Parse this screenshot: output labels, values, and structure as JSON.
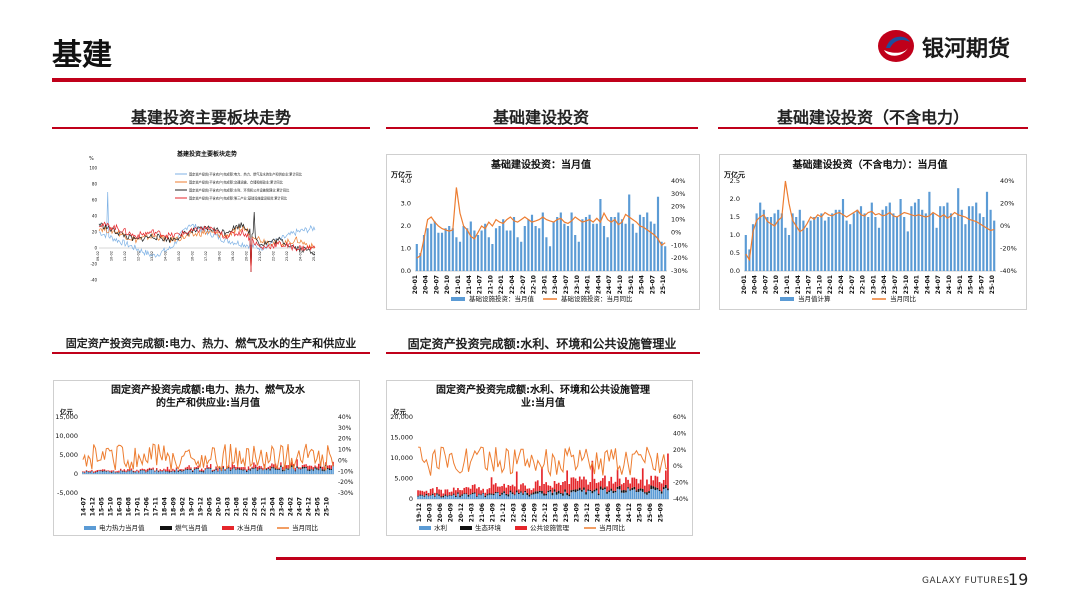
{
  "page": {
    "title": "基建",
    "number": "19",
    "footer": "GALAXY FUTURES"
  },
  "brand": {
    "name": "银河期货",
    "accent": "#c0001a"
  },
  "sections": [
    {
      "title": "基建投资主要板块走势"
    },
    {
      "title": "基础建设投资"
    },
    {
      "title": "基础建设投资（不含电力）"
    },
    {
      "title": "固定资产投资完成额:电力、热力、燃气及水的生产和供应业"
    },
    {
      "title": "固定资产投资完成额:水利、环境和公共设施管理业"
    }
  ],
  "chart_data": [
    {
      "type": "line",
      "title": "基建投资主要板块走势",
      "y_unit": "%",
      "ylim": [
        -40,
        100
      ],
      "yticks": [
        "100",
        "80",
        "60",
        "40",
        "20",
        "0",
        "-20",
        "-40"
      ],
      "legend": [
        "固定资产投资(不含农户)完成额:电力、热力、燃气及水的生产和供应业:累计同比",
        "固定资产投资(不含农户)完成额:交通运输、仓储和邮政业:累计同比",
        "固定资产投资(不含农户)完成额:水利、环境和公共设施管理业:累计同比",
        "固定资产投资(不含农户)完成额:第三产业:基础设施建设投资:累计同比"
      ],
      "colors": [
        "#7fb2e5",
        "#ed7d31",
        "#222222",
        "#e5262b"
      ],
      "xticks": [
        "09-02",
        "10-02",
        "11-02",
        "12-02",
        "13-02",
        "14-02",
        "15-02",
        "16-02",
        "17-02",
        "18-02",
        "19-02",
        "20-02",
        "21-02",
        "22-02",
        "23-02",
        "24-02",
        "25-02"
      ]
    },
    {
      "type": "bar+line",
      "title": "基础建设投资：当月值",
      "y_unit": "万亿元",
      "ylim": [
        0,
        4.0
      ],
      "yticks": [
        "4.0",
        "3.0",
        "2.0",
        "1.0",
        "0.0"
      ],
      "y2ticks": [
        "40%",
        "30%",
        "20%",
        "10%",
        "0%",
        "-10%",
        "-20%",
        "-30%"
      ],
      "y2lim": [
        -30,
        40
      ],
      "xticks": [
        "20-01",
        "20-04",
        "20-07",
        "20-10",
        "21-01",
        "21-04",
        "21-07",
        "21-10",
        "22-01",
        "22-04",
        "22-07",
        "22-10",
        "23-01",
        "23-04",
        "23-07",
        "23-10",
        "24-01",
        "24-04",
        "24-07",
        "24-10",
        "25-01",
        "25-04",
        "25-07",
        "25-10"
      ],
      "series": [
        {
          "name": "基础设施投资：当月值",
          "color": "#5b9bd5",
          "values": [
            1.2,
            0.8,
            1.6,
            1.9,
            2.1,
            2.2,
            1.7,
            1.7,
            1.9,
            2.0,
            1.9,
            1.5,
            1.3,
            2.0,
            1.9,
            2.2,
            1.8,
            1.6,
            1.8,
            2.1,
            1.5,
            1.2,
            1.9,
            2.0,
            2.3,
            1.8,
            1.8,
            2.4,
            1.5,
            1.3,
            2.0,
            2.3,
            2.5,
            2.0,
            1.9,
            2.6,
            1.5,
            1.1,
            2.2,
            2.4,
            2.6,
            2.1,
            2.0,
            2.6,
            1.6,
            1.3,
            2.3,
            2.4,
            2.5,
            2.1,
            2.1,
            3.2,
            2.0,
            1.5,
            2.4,
            2.4,
            2.6,
            2.3,
            2.1,
            3.4,
            2.1,
            1.7,
            2.5,
            2.4,
            2.6,
            2.2,
            2.1,
            3.3,
            1.3,
            1.1
          ]
        },
        {
          "name": "基础设施投资：当月同比",
          "color": "#ed7d31",
          "values": [
            -20,
            -18,
            -5,
            10,
            12,
            8,
            5,
            3,
            2,
            1,
            2,
            35,
            15,
            5,
            2,
            -3,
            -5,
            0,
            5,
            3,
            8,
            5,
            10,
            8,
            7,
            10,
            12,
            9,
            8,
            10,
            12,
            10,
            8,
            9,
            10,
            12,
            10,
            9,
            8,
            10,
            11,
            8,
            7,
            9,
            12,
            10,
            8,
            9,
            10,
            8,
            11,
            8,
            15,
            10,
            8,
            10,
            6,
            8,
            14,
            12,
            10,
            8,
            5,
            4,
            2,
            0,
            -2,
            -5,
            -10,
            -8
          ]
        }
      ]
    },
    {
      "type": "bar+line",
      "title": "基础建设投资（不含电力）：当月值",
      "y_unit": "万亿元",
      "ylim": [
        0,
        2.5
      ],
      "yticks": [
        "2.5",
        "2.0",
        "1.5",
        "1.0",
        "0.5",
        "0.0"
      ],
      "y2ticks": [
        "40%",
        "20%",
        "0%",
        "-20%",
        "-40%"
      ],
      "y2lim": [
        -40,
        40
      ],
      "xticks": [
        "20-01",
        "20-04",
        "20-07",
        "20-10",
        "21-01",
        "21-04",
        "21-07",
        "21-10",
        "22-01",
        "22-04",
        "22-07",
        "22-10",
        "23-01",
        "23-04",
        "23-07",
        "23-10",
        "24-01",
        "24-04",
        "24-07",
        "24-10",
        "25-01",
        "25-04",
        "25-07",
        "25-10"
      ],
      "series": [
        {
          "name": "当月值计算",
          "color": "#5b9bd5",
          "values": [
            1.0,
            0.6,
            1.3,
            1.6,
            1.9,
            1.7,
            1.5,
            1.5,
            1.6,
            1.7,
            1.6,
            1.2,
            1.0,
            1.6,
            1.5,
            1.7,
            1.4,
            1.2,
            1.4,
            1.5,
            1.5,
            1.6,
            1.4,
            1.5,
            1.6,
            1.7,
            1.7,
            2.0,
            1.4,
            1.3,
            1.6,
            1.7,
            1.8,
            1.6,
            1.5,
            1.9,
            1.5,
            1.2,
            1.7,
            1.8,
            1.9,
            1.6,
            1.5,
            2.0,
            1.5,
            1.1,
            1.8,
            1.9,
            2.0,
            1.7,
            1.6,
            2.2,
            1.6,
            1.2,
            1.8,
            1.8,
            1.9,
            1.6,
            1.5,
            2.3,
            1.7,
            1.3,
            1.8,
            1.8,
            1.9,
            1.6,
            1.5,
            2.2,
            1.7,
            1.4
          ]
        },
        {
          "name": "当月同比",
          "color": "#ed7d31",
          "values": [
            -25,
            -30,
            -5,
            5,
            8,
            10,
            4,
            2,
            0,
            5,
            8,
            40,
            20,
            5,
            0,
            -5,
            -3,
            2,
            8,
            6,
            10,
            8,
            12,
            10,
            9,
            11,
            12,
            10,
            8,
            10,
            12,
            14,
            10,
            9,
            12,
            13,
            10,
            11,
            9,
            10,
            12,
            9,
            8,
            10,
            12,
            11,
            10,
            9,
            10,
            9,
            8,
            9,
            12,
            10,
            8,
            10,
            7,
            9,
            12,
            10,
            9,
            8,
            6,
            5,
            4,
            2,
            0,
            -2,
            -4,
            -3
          ]
        }
      ]
    },
    {
      "type": "stacked-bar+line",
      "title": "固定资产投资完成额:电力、热力、燃气及水的生产和供应业:当月值",
      "y_unit": "亿元",
      "ylim": [
        -5000,
        15000
      ],
      "yticks": [
        "15,000",
        "10,000",
        "5,000",
        "0",
        "-5,000"
      ],
      "y2ticks": [
        "40%",
        "30%",
        "20%",
        "10%",
        "0%",
        "-10%",
        "-20%",
        "-30%"
      ],
      "y2lim": [
        -30,
        40
      ],
      "xticks": [
        "14-07",
        "14-12",
        "15-05",
        "15-10",
        "16-03",
        "16-08",
        "17-01",
        "17-06",
        "17-11",
        "18-04",
        "18-09",
        "19-02",
        "19-07",
        "19-12",
        "20-05",
        "20-10",
        "21-03",
        "21-08",
        "22-01",
        "22-06",
        "22-11",
        "23-04",
        "23-09",
        "24-02",
        "24-07",
        "24-12",
        "25-05",
        "25-10"
      ],
      "legend": [
        "电力热力当月值",
        "燃气当月值",
        "水当月值",
        "当月同比"
      ],
      "colors": [
        "#5b9bd5",
        "#111111",
        "#e5262b",
        "#ed7d31"
      ]
    },
    {
      "type": "stacked-bar+line",
      "title": "固定资产投资完成额:水利、环境和公共设施管理业:当月值",
      "y_unit": "亿元",
      "ylim": [
        0,
        20000
      ],
      "yticks": [
        "20,000",
        "15,000",
        "10,000",
        "5,000",
        "0"
      ],
      "y2ticks": [
        "60%",
        "40%",
        "20%",
        "0%",
        "-20%",
        "-40%"
      ],
      "y2lim": [
        -40,
        60
      ],
      "xticks": [
        "19-12",
        "20-03",
        "20-06",
        "20-09",
        "20-12",
        "21-03",
        "21-06",
        "21-09",
        "21-12",
        "22-03",
        "22-06",
        "22-09",
        "22-12",
        "23-03",
        "23-06",
        "23-09",
        "23-12",
        "24-03",
        "24-06",
        "24-09",
        "24-12",
        "25-03",
        "25-06",
        "25-09"
      ],
      "legend": [
        "水利",
        "生态环境",
        "公共设施管理",
        "当月同比"
      ],
      "colors": [
        "#5b9bd5",
        "#111111",
        "#e5262b",
        "#ed7d31"
      ]
    }
  ]
}
